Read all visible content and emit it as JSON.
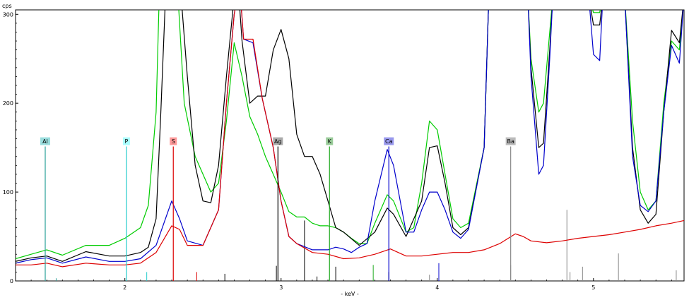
{
  "chart_data": {
    "type": "line",
    "title": "",
    "ylabel": "cps",
    "xlabel": "- keV -",
    "xlim": [
      1.3,
      5.58
    ],
    "ylim": [
      0,
      305
    ],
    "x_ticks": [
      2,
      3,
      4,
      5
    ],
    "y_ticks": [
      0,
      100,
      200,
      300
    ],
    "grid": false,
    "series": [
      {
        "color": "#00cc00",
        "points": [
          [
            1.3,
            25
          ],
          [
            1.4,
            30
          ],
          [
            1.5,
            35
          ],
          [
            1.6,
            29
          ],
          [
            1.75,
            40
          ],
          [
            1.9,
            40
          ],
          [
            2.0,
            48
          ],
          [
            2.1,
            60
          ],
          [
            2.15,
            85
          ],
          [
            2.2,
            190
          ],
          [
            2.22,
            320
          ],
          [
            2.34,
            320
          ],
          [
            2.38,
            200
          ],
          [
            2.45,
            140
          ],
          [
            2.55,
            100
          ],
          [
            2.6,
            110
          ],
          [
            2.65,
            180
          ],
          [
            2.7,
            268
          ],
          [
            2.75,
            230
          ],
          [
            2.8,
            185
          ],
          [
            2.85,
            165
          ],
          [
            2.9,
            140
          ],
          [
            2.95,
            120
          ],
          [
            3.0,
            100
          ],
          [
            3.05,
            78
          ],
          [
            3.1,
            72
          ],
          [
            3.15,
            72
          ],
          [
            3.2,
            65
          ],
          [
            3.25,
            62
          ],
          [
            3.3,
            62
          ],
          [
            3.35,
            60
          ],
          [
            3.4,
            55
          ],
          [
            3.45,
            48
          ],
          [
            3.5,
            42
          ],
          [
            3.55,
            42
          ],
          [
            3.6,
            65
          ],
          [
            3.68,
            97
          ],
          [
            3.72,
            90
          ],
          [
            3.8,
            55
          ],
          [
            3.85,
            60
          ],
          [
            3.9,
            110
          ],
          [
            3.95,
            180
          ],
          [
            4.0,
            170
          ],
          [
            4.05,
            120
          ],
          [
            4.1,
            70
          ],
          [
            4.15,
            60
          ],
          [
            4.2,
            65
          ],
          [
            4.3,
            150
          ],
          [
            4.33,
            320
          ],
          [
            4.58,
            320
          ],
          [
            4.6,
            250
          ],
          [
            4.65,
            190
          ],
          [
            4.68,
            200
          ],
          [
            4.72,
            280
          ],
          [
            4.74,
            320
          ],
          [
            4.97,
            320
          ],
          [
            5.0,
            302
          ],
          [
            5.04,
            302
          ],
          [
            5.06,
            320
          ],
          [
            5.2,
            320
          ],
          [
            5.25,
            180
          ],
          [
            5.3,
            100
          ],
          [
            5.35,
            80
          ],
          [
            5.4,
            90
          ],
          [
            5.45,
            200
          ],
          [
            5.5,
            270
          ],
          [
            5.55,
            260
          ],
          [
            5.58,
            320
          ]
        ]
      },
      {
        "color": "#000000",
        "points": [
          [
            1.3,
            22
          ],
          [
            1.4,
            26
          ],
          [
            1.5,
            28
          ],
          [
            1.6,
            22
          ],
          [
            1.75,
            33
          ],
          [
            1.9,
            28
          ],
          [
            2.0,
            28
          ],
          [
            2.1,
            32
          ],
          [
            2.15,
            38
          ],
          [
            2.2,
            70
          ],
          [
            2.23,
            190
          ],
          [
            2.26,
            320
          ],
          [
            2.36,
            320
          ],
          [
            2.4,
            230
          ],
          [
            2.45,
            130
          ],
          [
            2.5,
            90
          ],
          [
            2.55,
            88
          ],
          [
            2.6,
            130
          ],
          [
            2.65,
            230
          ],
          [
            2.7,
            320
          ],
          [
            2.73,
            320
          ],
          [
            2.75,
            270
          ],
          [
            2.8,
            200
          ],
          [
            2.85,
            208
          ],
          [
            2.9,
            208
          ],
          [
            2.95,
            260
          ],
          [
            3.0,
            283
          ],
          [
            3.05,
            250
          ],
          [
            3.1,
            165
          ],
          [
            3.15,
            140
          ],
          [
            3.2,
            140
          ],
          [
            3.25,
            120
          ],
          [
            3.3,
            90
          ],
          [
            3.35,
            60
          ],
          [
            3.4,
            55
          ],
          [
            3.5,
            40
          ],
          [
            3.6,
            55
          ],
          [
            3.68,
            82
          ],
          [
            3.72,
            75
          ],
          [
            3.8,
            50
          ],
          [
            3.9,
            90
          ],
          [
            3.95,
            150
          ],
          [
            4.0,
            152
          ],
          [
            4.05,
            110
          ],
          [
            4.1,
            60
          ],
          [
            4.15,
            52
          ],
          [
            4.2,
            60
          ],
          [
            4.3,
            150
          ],
          [
            4.33,
            320
          ],
          [
            4.58,
            320
          ],
          [
            4.6,
            240
          ],
          [
            4.65,
            150
          ],
          [
            4.68,
            155
          ],
          [
            4.72,
            260
          ],
          [
            4.74,
            320
          ],
          [
            4.97,
            320
          ],
          [
            5.0,
            288
          ],
          [
            5.04,
            288
          ],
          [
            5.06,
            320
          ],
          [
            5.2,
            320
          ],
          [
            5.25,
            150
          ],
          [
            5.3,
            80
          ],
          [
            5.35,
            65
          ],
          [
            5.4,
            75
          ],
          [
            5.45,
            190
          ],
          [
            5.5,
            282
          ],
          [
            5.55,
            268
          ],
          [
            5.58,
            320
          ]
        ]
      },
      {
        "color": "#0000cc",
        "points": [
          [
            1.3,
            20
          ],
          [
            1.4,
            24
          ],
          [
            1.5,
            26
          ],
          [
            1.6,
            20
          ],
          [
            1.75,
            27
          ],
          [
            1.9,
            22
          ],
          [
            2.0,
            22
          ],
          [
            2.1,
            25
          ],
          [
            2.2,
            40
          ],
          [
            2.3,
            90
          ],
          [
            2.35,
            70
          ],
          [
            2.4,
            45
          ],
          [
            2.5,
            40
          ],
          [
            2.6,
            80
          ],
          [
            2.65,
            200
          ],
          [
            2.7,
            300
          ],
          [
            2.72,
            320
          ],
          [
            2.74,
            320
          ],
          [
            2.76,
            272
          ],
          [
            2.82,
            268
          ],
          [
            2.88,
            205
          ],
          [
            2.95,
            150
          ],
          [
            3.0,
            90
          ],
          [
            3.05,
            50
          ],
          [
            3.1,
            42
          ],
          [
            3.2,
            35
          ],
          [
            3.3,
            35
          ],
          [
            3.35,
            38
          ],
          [
            3.4,
            36
          ],
          [
            3.45,
            32
          ],
          [
            3.5,
            38
          ],
          [
            3.55,
            42
          ],
          [
            3.6,
            90
          ],
          [
            3.68,
            148
          ],
          [
            3.72,
            130
          ],
          [
            3.8,
            55
          ],
          [
            3.85,
            55
          ],
          [
            3.9,
            80
          ],
          [
            3.95,
            100
          ],
          [
            4.0,
            100
          ],
          [
            4.05,
            80
          ],
          [
            4.1,
            55
          ],
          [
            4.15,
            48
          ],
          [
            4.2,
            58
          ],
          [
            4.3,
            150
          ],
          [
            4.33,
            320
          ],
          [
            4.58,
            320
          ],
          [
            4.6,
            230
          ],
          [
            4.65,
            120
          ],
          [
            4.68,
            130
          ],
          [
            4.72,
            250
          ],
          [
            4.74,
            320
          ],
          [
            4.97,
            320
          ],
          [
            5.0,
            255
          ],
          [
            5.04,
            248
          ],
          [
            5.06,
            320
          ],
          [
            5.2,
            320
          ],
          [
            5.25,
            140
          ],
          [
            5.3,
            85
          ],
          [
            5.35,
            78
          ],
          [
            5.4,
            90
          ],
          [
            5.45,
            190
          ],
          [
            5.5,
            265
          ],
          [
            5.55,
            245
          ],
          [
            5.58,
            320
          ]
        ]
      },
      {
        "color": "#dd0000",
        "points": [
          [
            1.3,
            18
          ],
          [
            1.4,
            18
          ],
          [
            1.5,
            20
          ],
          [
            1.6,
            16
          ],
          [
            1.75,
            20
          ],
          [
            1.9,
            18
          ],
          [
            2.0,
            18
          ],
          [
            2.1,
            20
          ],
          [
            2.2,
            32
          ],
          [
            2.3,
            62
          ],
          [
            2.35,
            58
          ],
          [
            2.4,
            40
          ],
          [
            2.5,
            40
          ],
          [
            2.6,
            80
          ],
          [
            2.65,
            200
          ],
          [
            2.7,
            300
          ],
          [
            2.72,
            320
          ],
          [
            2.74,
            320
          ],
          [
            2.76,
            272
          ],
          [
            2.82,
            272
          ],
          [
            2.88,
            205
          ],
          [
            2.95,
            150
          ],
          [
            3.0,
            90
          ],
          [
            3.05,
            50
          ],
          [
            3.1,
            42
          ],
          [
            3.2,
            32
          ],
          [
            3.3,
            30
          ],
          [
            3.4,
            25
          ],
          [
            3.5,
            26
          ],
          [
            3.6,
            30
          ],
          [
            3.7,
            36
          ],
          [
            3.8,
            28
          ],
          [
            3.9,
            28
          ],
          [
            4.0,
            30
          ],
          [
            4.1,
            32
          ],
          [
            4.2,
            32
          ],
          [
            4.3,
            35
          ],
          [
            4.4,
            42
          ],
          [
            4.5,
            53
          ],
          [
            4.55,
            50
          ],
          [
            4.6,
            45
          ],
          [
            4.7,
            43
          ],
          [
            4.8,
            45
          ],
          [
            4.9,
            48
          ],
          [
            5.0,
            50
          ],
          [
            5.1,
            52
          ],
          [
            5.2,
            55
          ],
          [
            5.3,
            58
          ],
          [
            5.4,
            62
          ],
          [
            5.5,
            65
          ],
          [
            5.58,
            68
          ]
        ]
      }
    ],
    "element_markers": [
      {
        "label": "Al",
        "x": 1.49,
        "color": "#2aa198",
        "box": "#99dddd",
        "height": 160
      },
      {
        "label": "P",
        "x": 2.01,
        "color": "#22cccc",
        "box": "#aaffff",
        "height": 160
      },
      {
        "label": "S",
        "x": 2.31,
        "color": "#dd0000",
        "box": "#ff9999",
        "height": 160
      },
      {
        "label": "Ag",
        "x": 2.98,
        "color": "#000000",
        "box": "#aaaaaa",
        "height": 160
      },
      {
        "label": "K",
        "x": 3.31,
        "color": "#22aa22",
        "box": "#99cc99",
        "height": 160
      },
      {
        "label": "Ca",
        "x": 3.69,
        "color": "#0000cc",
        "box": "#9999ee",
        "height": 160
      },
      {
        "label": "Ba",
        "x": 4.47,
        "color": "#888888",
        "box": "#bbbbbb",
        "height": 160
      }
    ],
    "line_markers": [
      {
        "x": 1.56,
        "h": 3,
        "color": "#2aa198"
      },
      {
        "x": 2.14,
        "h": 10,
        "color": "#22cccc"
      },
      {
        "x": 2.46,
        "h": 10,
        "color": "#dd0000"
      },
      {
        "x": 2.64,
        "h": 8,
        "color": "#000000"
      },
      {
        "x": 2.97,
        "h": 17,
        "color": "#000000"
      },
      {
        "x": 3.15,
        "h": 68,
        "color": "#000000"
      },
      {
        "x": 3.23,
        "h": 5,
        "color": "#000000"
      },
      {
        "x": 3.35,
        "h": 16,
        "color": "#000000"
      },
      {
        "x": 3.59,
        "h": 18,
        "color": "#22aa22"
      },
      {
        "x": 3.69,
        "h": 10,
        "color": "#000000"
      },
      {
        "x": 3.95,
        "h": 7,
        "color": "#888888"
      },
      {
        "x": 4.01,
        "h": 20,
        "color": "#0000cc"
      },
      {
        "x": 4.47,
        "h": 18,
        "color": "#888888"
      },
      {
        "x": 4.83,
        "h": 80,
        "color": "#888888"
      },
      {
        "x": 4.85,
        "h": 10,
        "color": "#888888"
      },
      {
        "x": 4.93,
        "h": 16,
        "color": "#888888"
      },
      {
        "x": 5.16,
        "h": 31,
        "color": "#888888"
      },
      {
        "x": 5.53,
        "h": 12,
        "color": "#888888"
      }
    ]
  }
}
